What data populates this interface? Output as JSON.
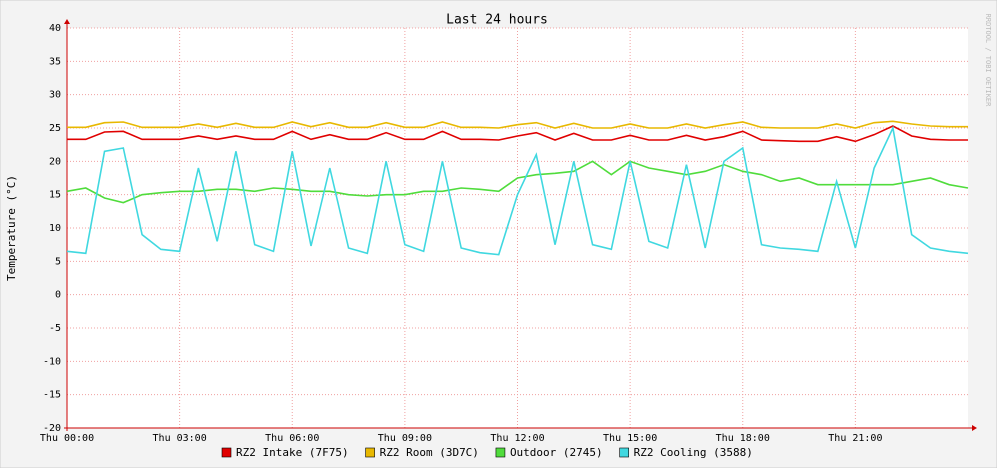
{
  "chart_data": {
    "type": "line",
    "title": "Last 24 hours",
    "y_label": "Temperature (°C)",
    "watermark": "RRDTOOL / TOBI OETIKER",
    "x": [
      0,
      0.5,
      1,
      1.5,
      2,
      2.5,
      3,
      3.5,
      4,
      4.5,
      5,
      5.5,
      6,
      6.5,
      7,
      7.5,
      8,
      8.5,
      9,
      9.5,
      10,
      10.5,
      11,
      11.5,
      12,
      12.5,
      13,
      13.5,
      14,
      14.5,
      15,
      15.5,
      16,
      16.5,
      17,
      17.5,
      18,
      18.5,
      19,
      19.5,
      20,
      20.5,
      21,
      21.5,
      22,
      22.5,
      23,
      23.5,
      24
    ],
    "xlim": [
      0,
      24
    ],
    "xticks": [
      {
        "value": 0,
        "label": "Thu 00:00"
      },
      {
        "value": 3,
        "label": "Thu 03:00"
      },
      {
        "value": 6,
        "label": "Thu 06:00"
      },
      {
        "value": 9,
        "label": "Thu 09:00"
      },
      {
        "value": 12,
        "label": "Thu 12:00"
      },
      {
        "value": 15,
        "label": "Thu 15:00"
      },
      {
        "value": 18,
        "label": "Thu 18:00"
      },
      {
        "value": 21,
        "label": "Thu 21:00"
      }
    ],
    "ylim": [
      -20,
      40
    ],
    "yticks": [
      -20,
      -15,
      -10,
      -5,
      0,
      5,
      10,
      15,
      20,
      25,
      30,
      35,
      40
    ],
    "grid": true,
    "legend": "bottom",
    "series": [
      {
        "name": "RZ2 Intake (7F75)",
        "color": "#e00000",
        "values": [
          23.3,
          23.3,
          24.4,
          24.5,
          23.3,
          23.3,
          23.3,
          23.8,
          23.3,
          23.8,
          23.3,
          23.3,
          24.5,
          23.3,
          24,
          23.3,
          23.3,
          24.3,
          23.3,
          23.3,
          24.5,
          23.3,
          23.3,
          23.2,
          23.8,
          24.3,
          23.2,
          24.2,
          23.2,
          23.2,
          23.9,
          23.2,
          23.2,
          23.9,
          23.2,
          23.7,
          24.5,
          23.2,
          23.1,
          23,
          23,
          23.7,
          23,
          24,
          25.3,
          23.8,
          23.3,
          23.2,
          23.2
        ]
      },
      {
        "name": "RZ2 Room (3D7C)",
        "color": "#e8b800",
        "values": [
          25.1,
          25.1,
          25.8,
          25.9,
          25.1,
          25.1,
          25.1,
          25.6,
          25.1,
          25.7,
          25.1,
          25.1,
          25.9,
          25.2,
          25.8,
          25.1,
          25.1,
          25.8,
          25.1,
          25.1,
          25.9,
          25.1,
          25.1,
          25,
          25.5,
          25.8,
          25,
          25.7,
          25,
          25,
          25.6,
          25,
          25,
          25.6,
          25,
          25.5,
          25.9,
          25.1,
          25,
          25,
          25,
          25.6,
          25,
          25.8,
          26,
          25.6,
          25.3,
          25.2,
          25.2
        ]
      },
      {
        "name": "Outdoor (2745)",
        "color": "#50dc3c",
        "values": [
          15.5,
          16,
          14.5,
          13.8,
          15,
          15.3,
          15.5,
          15.5,
          15.8,
          15.8,
          15.5,
          16,
          15.8,
          15.5,
          15.5,
          15,
          14.8,
          15,
          15,
          15.5,
          15.5,
          16,
          15.8,
          15.5,
          17.5,
          18,
          18.2,
          18.5,
          20,
          18,
          20,
          19,
          18.5,
          18,
          18.5,
          19.5,
          18.5,
          18,
          17,
          17.5,
          16.5,
          16.5,
          16.5,
          16.5,
          16.5,
          17,
          17.5,
          16.5,
          16
        ]
      },
      {
        "name": "RZ2 Cooling (3588)",
        "color": "#40d8e0",
        "values": [
          6.5,
          6.2,
          21.5,
          22,
          9,
          6.8,
          6.5,
          19,
          8,
          21.5,
          7.5,
          6.5,
          21.5,
          7.3,
          19,
          7,
          6.2,
          20,
          7.5,
          6.5,
          20,
          7,
          6.3,
          6,
          15,
          21,
          7.5,
          20,
          7.5,
          6.8,
          20,
          8,
          7,
          19.5,
          7,
          20,
          22,
          7.5,
          7,
          6.8,
          6.5,
          17,
          7,
          19,
          25,
          9,
          7,
          6.5,
          6.2
        ]
      }
    ]
  }
}
